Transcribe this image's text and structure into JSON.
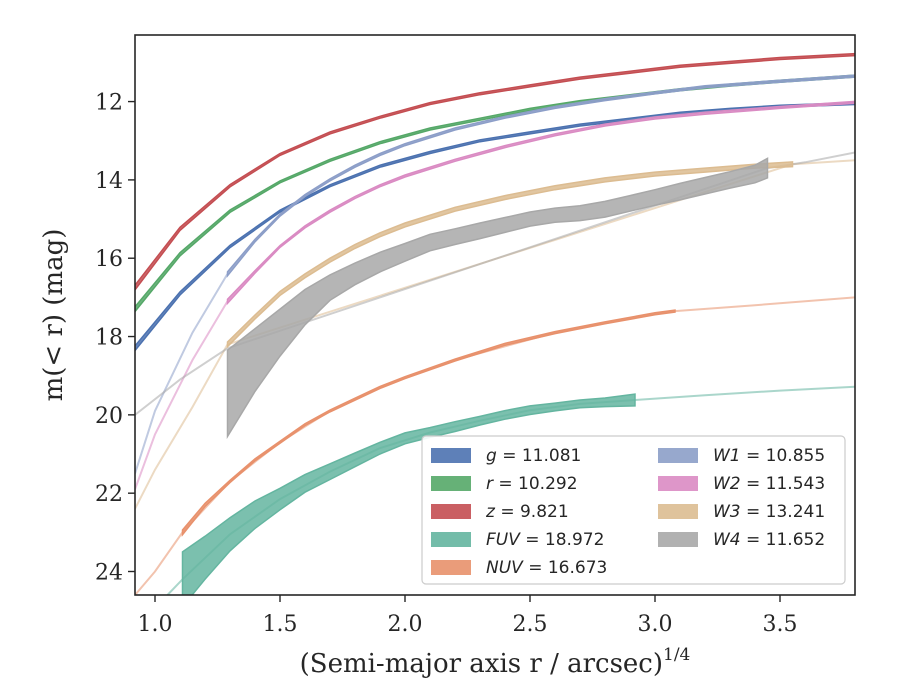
{
  "chart_data": {
    "type": "line",
    "title": "",
    "xlabel": "(Semi-major axis r / arcsec)",
    "xlabel_exponent": "1/4",
    "ylabel": "m(< r) (mag)",
    "xlim": [
      0.92,
      3.8
    ],
    "ylim": [
      24.6,
      10.3
    ],
    "y_inverted": true,
    "x_ticks": [
      1.0,
      1.5,
      2.0,
      2.5,
      3.0,
      3.5
    ],
    "x_tick_labels": [
      "1.0",
      "1.5",
      "2.0",
      "2.5",
      "3.0",
      "3.5"
    ],
    "y_ticks": [
      12,
      14,
      16,
      18,
      20,
      22,
      24
    ],
    "y_tick_labels": [
      "12",
      "14",
      "16",
      "18",
      "20",
      "22",
      "24"
    ],
    "grid": false,
    "legend_position": "lower-right",
    "series": [
      {
        "name": "g",
        "label": "g = 11.081",
        "color": "#4c72b0",
        "band": {
          "x": [
            0.92,
            1.1,
            1.3,
            1.5,
            1.7,
            1.9,
            2.1,
            2.3,
            2.5,
            2.7,
            2.9,
            3.1,
            3.3,
            3.5,
            3.8
          ],
          "y": [
            18.3,
            16.9,
            15.7,
            14.8,
            14.15,
            13.65,
            13.3,
            13.0,
            12.8,
            12.6,
            12.45,
            12.3,
            12.2,
            12.12,
            12.05
          ],
          "width": [
            0.12,
            0.08,
            0.06,
            0.05,
            0.05,
            0.05,
            0.05,
            0.05,
            0.05,
            0.05,
            0.05,
            0.05,
            0.05,
            0.05,
            0.05
          ]
        },
        "ext": {
          "x": [],
          "y": []
        }
      },
      {
        "name": "r",
        "label": "r = 10.292",
        "color": "#55a868",
        "band": {
          "x": [
            0.92,
            1.1,
            1.3,
            1.5,
            1.7,
            1.9,
            2.1,
            2.3,
            2.5,
            2.7,
            2.9,
            3.1,
            3.3,
            3.5,
            3.8
          ],
          "y": [
            17.3,
            15.9,
            14.8,
            14.05,
            13.5,
            13.05,
            12.7,
            12.45,
            12.2,
            12.0,
            11.85,
            11.7,
            11.58,
            11.48,
            11.35
          ],
          "width": [
            0.12,
            0.08,
            0.06,
            0.05,
            0.05,
            0.05,
            0.05,
            0.05,
            0.05,
            0.05,
            0.05,
            0.05,
            0.05,
            0.05,
            0.05
          ]
        },
        "ext": {
          "x": [],
          "y": []
        }
      },
      {
        "name": "z",
        "label": "z = 9.821",
        "color": "#c44e52",
        "band": {
          "x": [
            0.92,
            1.1,
            1.3,
            1.5,
            1.7,
            1.9,
            2.1,
            2.3,
            2.5,
            2.7,
            2.9,
            3.1,
            3.3,
            3.5,
            3.8
          ],
          "y": [
            16.75,
            15.25,
            14.15,
            13.35,
            12.8,
            12.4,
            12.05,
            11.8,
            11.6,
            11.4,
            11.25,
            11.1,
            11.0,
            10.9,
            10.8
          ],
          "width": [
            0.12,
            0.08,
            0.06,
            0.05,
            0.05,
            0.05,
            0.05,
            0.05,
            0.05,
            0.05,
            0.05,
            0.05,
            0.05,
            0.05,
            0.05
          ]
        },
        "ext": {
          "x": [],
          "y": []
        }
      },
      {
        "name": "FUV",
        "label": "FUV = 18.972",
        "color": "#64b5a0",
        "band": {
          "x": [
            1.11,
            1.2,
            1.3,
            1.4,
            1.5,
            1.6,
            1.7,
            1.8,
            1.9,
            2.0,
            2.1,
            2.2,
            2.3,
            2.4,
            2.5,
            2.6,
            2.7,
            2.8,
            2.92
          ],
          "y": [
            24.2,
            23.65,
            23.05,
            22.55,
            22.15,
            21.75,
            21.45,
            21.15,
            20.85,
            20.6,
            20.45,
            20.3,
            20.15,
            20.0,
            19.88,
            19.8,
            19.72,
            19.68,
            19.62
          ],
          "width": [
            1.4,
            1.1,
            0.85,
            0.7,
            0.55,
            0.45,
            0.4,
            0.35,
            0.3,
            0.28,
            0.25,
            0.25,
            0.22,
            0.22,
            0.22,
            0.2,
            0.2,
            0.22,
            0.3
          ]
        },
        "ext": {
          "x": [
            1.05,
            1.11,
            1.3,
            1.5,
            1.7,
            1.9,
            2.1,
            2.3,
            2.5,
            2.7,
            2.92,
            3.2,
            3.5,
            3.8
          ],
          "y": [
            24.6,
            24.2,
            23.05,
            22.15,
            21.45,
            20.85,
            20.45,
            20.15,
            19.88,
            19.72,
            19.62,
            19.5,
            19.38,
            19.28
          ]
        }
      },
      {
        "name": "NUV",
        "label": "NUV = 16.673",
        "color": "#e8916c",
        "band": {
          "x": [
            1.11,
            1.2,
            1.3,
            1.4,
            1.5,
            1.6,
            1.7,
            1.8,
            1.9,
            2.0,
            2.2,
            2.4,
            2.6,
            2.8,
            3.0,
            3.08
          ],
          "y": [
            23.0,
            22.3,
            21.7,
            21.15,
            20.7,
            20.25,
            19.9,
            19.6,
            19.3,
            19.05,
            18.6,
            18.2,
            17.9,
            17.65,
            17.42,
            17.35
          ],
          "width": [
            0.12,
            0.08,
            0.06,
            0.05,
            0.05,
            0.05,
            0.05,
            0.05,
            0.05,
            0.05,
            0.05,
            0.05,
            0.05,
            0.05,
            0.05,
            0.05
          ]
        },
        "ext": {
          "x": [
            0.92,
            1.0,
            1.11,
            1.3,
            1.5,
            1.7,
            1.9,
            2.2,
            2.6,
            3.0,
            3.08,
            3.4,
            3.8
          ],
          "y": [
            24.6,
            24.0,
            23.0,
            21.7,
            20.7,
            19.9,
            19.3,
            18.6,
            17.9,
            17.42,
            17.35,
            17.2,
            17.0
          ]
        }
      },
      {
        "name": "W1",
        "label": "W1 = 10.855",
        "color": "#8c9ec8",
        "band": {
          "x": [
            1.29,
            1.4,
            1.5,
            1.6,
            1.7,
            1.8,
            1.9,
            2.0,
            2.2,
            2.4,
            2.6,
            2.8,
            3.0,
            3.2,
            3.5,
            3.8
          ],
          "y": [
            16.4,
            15.55,
            14.9,
            14.4,
            14.0,
            13.65,
            13.35,
            13.1,
            12.7,
            12.4,
            12.15,
            11.95,
            11.78,
            11.62,
            11.48,
            11.35
          ],
          "width": [
            0.1,
            0.06,
            0.05,
            0.05,
            0.05,
            0.05,
            0.05,
            0.05,
            0.05,
            0.05,
            0.05,
            0.05,
            0.05,
            0.05,
            0.05,
            0.05
          ]
        },
        "ext": {
          "x": [
            0.92,
            1.0,
            1.15,
            1.29
          ],
          "y": [
            21.5,
            19.9,
            17.9,
            16.4
          ]
        }
      },
      {
        "name": "W2",
        "label": "W2 = 11.543",
        "color": "#da8bc3",
        "band": {
          "x": [
            1.29,
            1.4,
            1.5,
            1.6,
            1.7,
            1.8,
            1.9,
            2.0,
            2.2,
            2.4,
            2.6,
            2.8,
            3.0,
            3.2,
            3.5,
            3.8
          ],
          "y": [
            17.1,
            16.35,
            15.7,
            15.2,
            14.8,
            14.45,
            14.15,
            13.9,
            13.5,
            13.15,
            12.85,
            12.6,
            12.42,
            12.3,
            12.15,
            12.02
          ],
          "width": [
            0.1,
            0.06,
            0.05,
            0.05,
            0.05,
            0.05,
            0.05,
            0.05,
            0.05,
            0.05,
            0.05,
            0.05,
            0.05,
            0.05,
            0.05,
            0.05
          ]
        },
        "ext": {
          "x": [
            0.92,
            1.0,
            1.15,
            1.29
          ],
          "y": [
            21.9,
            20.5,
            18.6,
            17.1
          ]
        }
      },
      {
        "name": "W3",
        "label": "W3 = 13.241",
        "color": "#dcbc91",
        "band": {
          "x": [
            1.29,
            1.4,
            1.5,
            1.6,
            1.7,
            1.8,
            1.9,
            2.0,
            2.2,
            2.4,
            2.6,
            2.8,
            3.0,
            3.2,
            3.4,
            3.55
          ],
          "y": [
            18.2,
            17.5,
            16.9,
            16.45,
            16.05,
            15.7,
            15.4,
            15.15,
            14.75,
            14.45,
            14.2,
            14.0,
            13.85,
            13.75,
            13.65,
            13.6
          ],
          "width": [
            0.12,
            0.1,
            0.1,
            0.1,
            0.1,
            0.1,
            0.1,
            0.1,
            0.1,
            0.1,
            0.1,
            0.1,
            0.1,
            0.1,
            0.1,
            0.12
          ]
        },
        "ext": {
          "x": [
            0.92,
            1.0,
            1.15,
            1.29,
            3.55,
            3.8
          ],
          "y": [
            22.4,
            21.4,
            19.8,
            18.2,
            13.6,
            13.5
          ]
        }
      },
      {
        "name": "W4",
        "label": "W4 = 11.652",
        "color": "#a8a8a8",
        "band": {
          "x": [
            1.29,
            1.4,
            1.5,
            1.6,
            1.7,
            1.8,
            1.9,
            2.0,
            2.1,
            2.2,
            2.3,
            2.4,
            2.5,
            2.6,
            2.7,
            2.8,
            2.9,
            3.0,
            3.1,
            3.2,
            3.3,
            3.4,
            3.45
          ],
          "y": [
            19.45,
            18.6,
            17.9,
            17.25,
            16.75,
            16.4,
            16.1,
            15.85,
            15.6,
            15.45,
            15.3,
            15.15,
            15.0,
            14.9,
            14.85,
            14.75,
            14.6,
            14.45,
            14.3,
            14.15,
            14.0,
            13.85,
            13.7
          ],
          "width": [
            2.2,
            1.6,
            1.2,
            0.9,
            0.65,
            0.55,
            0.5,
            0.45,
            0.42,
            0.4,
            0.4,
            0.38,
            0.36,
            0.36,
            0.38,
            0.4,
            0.4,
            0.4,
            0.42,
            0.42,
            0.42,
            0.45,
            0.5
          ]
        },
        "ext": {
          "x": [
            0.92,
            1.1,
            1.29,
            3.45,
            3.6,
            3.8
          ],
          "y": [
            20.0,
            19.1,
            18.3,
            13.7,
            13.55,
            13.3
          ]
        }
      }
    ],
    "legend": [
      {
        "series": "g",
        "prefix": "g",
        "value": "= 11.081"
      },
      {
        "series": "r",
        "prefix": "r",
        "value": "= 10.292"
      },
      {
        "series": "z",
        "prefix": "z",
        "value": "= 9.821"
      },
      {
        "series": "FUV",
        "prefix": "FUV",
        "value": "= 18.972"
      },
      {
        "series": "NUV",
        "prefix": "NUV",
        "value": "= 16.673"
      },
      {
        "series": "W1",
        "prefix": "W1",
        "value": "= 10.855"
      },
      {
        "series": "W2",
        "prefix": "W2",
        "value": "= 11.543"
      },
      {
        "series": "W3",
        "prefix": "W3",
        "value": "= 13.241"
      },
      {
        "series": "W4",
        "prefix": "W4",
        "value": "= 11.652"
      }
    ]
  }
}
